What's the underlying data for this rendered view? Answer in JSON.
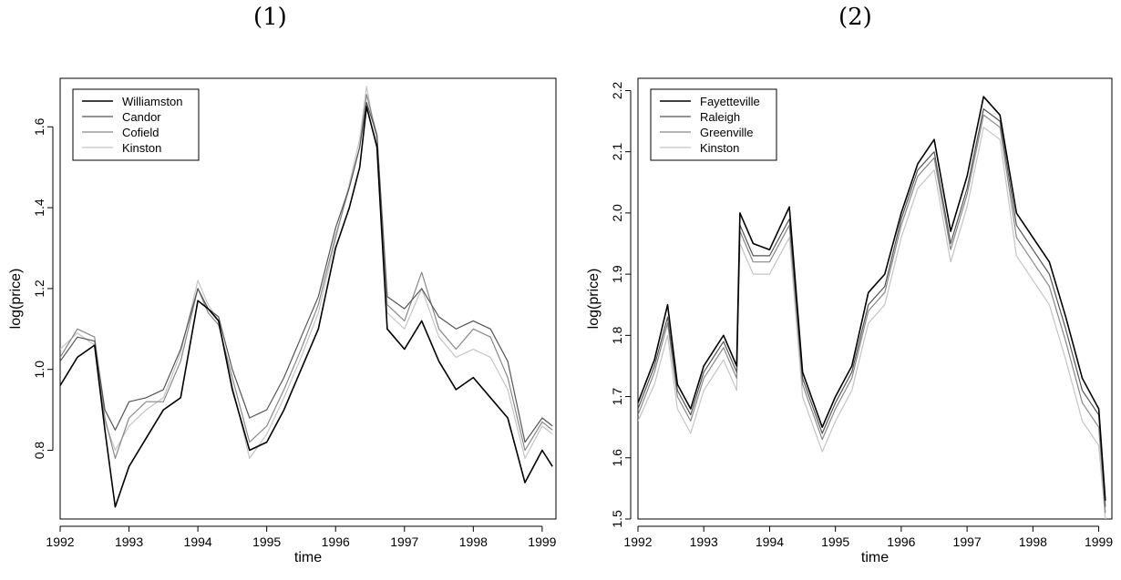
{
  "panels": {
    "left_label": "(1)",
    "right_label": "(2)"
  },
  "chart_data": [
    {
      "type": "line",
      "title": "(1)",
      "xlabel": "time",
      "ylabel": "log(price)",
      "xlim": [
        1992,
        1999.2
      ],
      "ylim": [
        0.63,
        1.72
      ],
      "xticks": [
        1992,
        1993,
        1994,
        1995,
        1996,
        1997,
        1998,
        1999
      ],
      "yticks": [
        0.8,
        1.0,
        1.2,
        1.4,
        1.6
      ],
      "ytick_labels": [
        "0.8",
        "1.0",
        "1.2",
        "1.4",
        "1.6"
      ],
      "legend_position": "top-left",
      "x": [
        1992.0,
        1992.25,
        1992.5,
        1992.65,
        1992.8,
        1993.0,
        1993.25,
        1993.5,
        1993.75,
        1994.0,
        1994.15,
        1994.3,
        1994.5,
        1994.75,
        1995.0,
        1995.25,
        1995.5,
        1995.75,
        1996.0,
        1996.2,
        1996.35,
        1996.45,
        1996.6,
        1996.75,
        1997.0,
        1997.25,
        1997.5,
        1997.75,
        1998.0,
        1998.25,
        1998.5,
        1998.75,
        1999.0,
        1999.15
      ],
      "series": [
        {
          "name": "Williamston",
          "color": "#000000",
          "width": 1.6,
          "values": [
            0.96,
            1.03,
            1.06,
            0.85,
            0.66,
            0.76,
            0.83,
            0.9,
            0.93,
            1.17,
            1.15,
            1.12,
            0.95,
            0.8,
            0.82,
            0.9,
            1.0,
            1.1,
            1.3,
            1.4,
            1.5,
            1.65,
            1.55,
            1.1,
            1.05,
            1.12,
            1.02,
            0.95,
            0.98,
            0.93,
            0.88,
            0.72,
            0.8,
            0.76
          ]
        },
        {
          "name": "Candor",
          "color": "#555555",
          "width": 1.2,
          "values": [
            1.02,
            1.08,
            1.07,
            0.9,
            0.85,
            0.92,
            0.93,
            0.95,
            1.05,
            1.2,
            1.15,
            1.13,
            1.0,
            0.88,
            0.9,
            0.98,
            1.08,
            1.18,
            1.35,
            1.45,
            1.55,
            1.66,
            1.58,
            1.18,
            1.15,
            1.2,
            1.13,
            1.1,
            1.12,
            1.1,
            1.02,
            0.82,
            0.88,
            0.86
          ]
        },
        {
          "name": "Cofield",
          "color": "#888888",
          "width": 1.2,
          "values": [
            1.03,
            1.1,
            1.08,
            0.88,
            0.78,
            0.88,
            0.92,
            0.92,
            1.02,
            1.2,
            1.14,
            1.11,
            0.98,
            0.82,
            0.86,
            0.95,
            1.05,
            1.16,
            1.33,
            1.45,
            1.55,
            1.68,
            1.58,
            1.16,
            1.12,
            1.24,
            1.1,
            1.05,
            1.1,
            1.08,
            0.98,
            0.8,
            0.87,
            0.85
          ]
        },
        {
          "name": "Kinston",
          "color": "#c4c4c4",
          "width": 1.2,
          "values": [
            1.05,
            1.09,
            1.06,
            0.87,
            0.8,
            0.86,
            0.9,
            0.93,
            1.04,
            1.22,
            1.16,
            1.12,
            0.96,
            0.78,
            0.84,
            0.93,
            1.03,
            1.14,
            1.32,
            1.46,
            1.57,
            1.7,
            1.56,
            1.14,
            1.1,
            1.2,
            1.08,
            1.03,
            1.05,
            1.03,
            0.95,
            0.78,
            0.86,
            0.84
          ]
        }
      ]
    },
    {
      "type": "line",
      "title": "(2)",
      "xlabel": "time",
      "ylabel": "log(price)",
      "xlim": [
        1992,
        1999.2
      ],
      "ylim": [
        1.5,
        2.22
      ],
      "xticks": [
        1992,
        1993,
        1994,
        1995,
        1996,
        1997,
        1998,
        1999
      ],
      "yticks": [
        1.5,
        1.6,
        1.7,
        1.8,
        1.9,
        2.0,
        2.1,
        2.2
      ],
      "ytick_labels": [
        "1.5",
        "1.6",
        "1.7",
        "1.8",
        "1.9",
        "2.0",
        "2.1",
        "2.2"
      ],
      "legend_position": "top-left",
      "x": [
        1992.0,
        1992.25,
        1992.45,
        1992.6,
        1992.8,
        1993.0,
        1993.3,
        1993.5,
        1993.55,
        1993.75,
        1994.0,
        1994.3,
        1994.5,
        1994.8,
        1995.0,
        1995.25,
        1995.5,
        1995.75,
        1996.0,
        1996.25,
        1996.5,
        1996.75,
        1997.0,
        1997.25,
        1997.5,
        1997.75,
        1998.0,
        1998.25,
        1998.5,
        1998.75,
        1999.0,
        1999.1
      ],
      "series": [
        {
          "name": "Fayetteville",
          "color": "#000000",
          "width": 1.6,
          "values": [
            1.69,
            1.76,
            1.85,
            1.72,
            1.68,
            1.75,
            1.8,
            1.75,
            2.0,
            1.95,
            1.94,
            2.01,
            1.74,
            1.65,
            1.7,
            1.75,
            1.87,
            1.9,
            2.0,
            2.08,
            2.12,
            1.97,
            2.06,
            2.19,
            2.16,
            2.0,
            1.96,
            1.92,
            1.83,
            1.73,
            1.68,
            1.53
          ]
        },
        {
          "name": "Raleigh",
          "color": "#555555",
          "width": 1.2,
          "values": [
            1.68,
            1.75,
            1.83,
            1.71,
            1.67,
            1.74,
            1.79,
            1.74,
            1.98,
            1.93,
            1.93,
            1.99,
            1.73,
            1.64,
            1.69,
            1.74,
            1.85,
            1.88,
            1.99,
            2.07,
            2.1,
            1.95,
            2.04,
            2.17,
            2.15,
            1.98,
            1.94,
            1.9,
            1.81,
            1.71,
            1.67,
            1.52
          ]
        },
        {
          "name": "Greenville",
          "color": "#888888",
          "width": 1.2,
          "values": [
            1.67,
            1.74,
            1.82,
            1.7,
            1.66,
            1.73,
            1.78,
            1.73,
            1.97,
            1.92,
            1.92,
            1.98,
            1.72,
            1.63,
            1.68,
            1.73,
            1.84,
            1.87,
            1.98,
            2.06,
            2.09,
            1.94,
            2.03,
            2.16,
            2.14,
            1.96,
            1.92,
            1.88,
            1.79,
            1.69,
            1.65,
            1.51
          ]
        },
        {
          "name": "Kinston",
          "color": "#c4c4c4",
          "width": 1.2,
          "values": [
            1.66,
            1.72,
            1.8,
            1.68,
            1.64,
            1.71,
            1.76,
            1.71,
            1.95,
            1.9,
            1.9,
            1.96,
            1.7,
            1.61,
            1.66,
            1.71,
            1.82,
            1.85,
            1.96,
            2.04,
            2.07,
            1.92,
            2.01,
            2.14,
            2.12,
            1.93,
            1.89,
            1.85,
            1.76,
            1.66,
            1.62,
            1.5
          ]
        }
      ]
    }
  ]
}
